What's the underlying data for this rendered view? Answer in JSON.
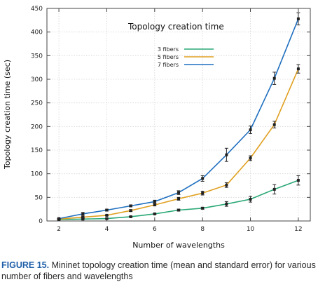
{
  "chart_data": {
    "type": "line",
    "title": "Topology creation time",
    "xlabel": "Number of wavelengths",
    "ylabel": "Topology creation time (sec)",
    "xlim": [
      1.5,
      12.5
    ],
    "ylim": [
      0,
      450
    ],
    "xticks": [
      2,
      4,
      6,
      8,
      10,
      12
    ],
    "yticks": [
      0,
      50,
      100,
      150,
      200,
      250,
      300,
      350,
      400,
      450
    ],
    "grid": true,
    "legend_position": "top-left-inside",
    "x": [
      2,
      3,
      4,
      5,
      6,
      7,
      8,
      9,
      10,
      11,
      12
    ],
    "series": [
      {
        "name": "3 fibers",
        "color": "#2aa876",
        "values": [
          3,
          4,
          5,
          9,
          15,
          23,
          27,
          36,
          46,
          67,
          86
        ],
        "errors": [
          1,
          1,
          1,
          1,
          1,
          2,
          2,
          5,
          6,
          10,
          10
        ]
      },
      {
        "name": "5 fibers",
        "color": "#e0a020",
        "values": [
          4,
          8,
          12,
          22,
          34,
          47,
          59,
          76,
          133,
          204,
          322
        ],
        "errors": [
          1,
          1,
          1,
          2,
          2,
          3,
          4,
          5,
          5,
          7,
          9
        ]
      },
      {
        "name": "7 fibers",
        "color": "#1f6fbf",
        "values": [
          5,
          15,
          23,
          32,
          41,
          60,
          90,
          140,
          193,
          302,
          428
        ],
        "errors": [
          1,
          3,
          2,
          2,
          3,
          4,
          6,
          14,
          8,
          13,
          13
        ]
      }
    ]
  },
  "caption": {
    "label": "FIGURE 15.",
    "text": "Mininet topology creation time (mean and standard error) for various number of fibers and wavelengths"
  }
}
